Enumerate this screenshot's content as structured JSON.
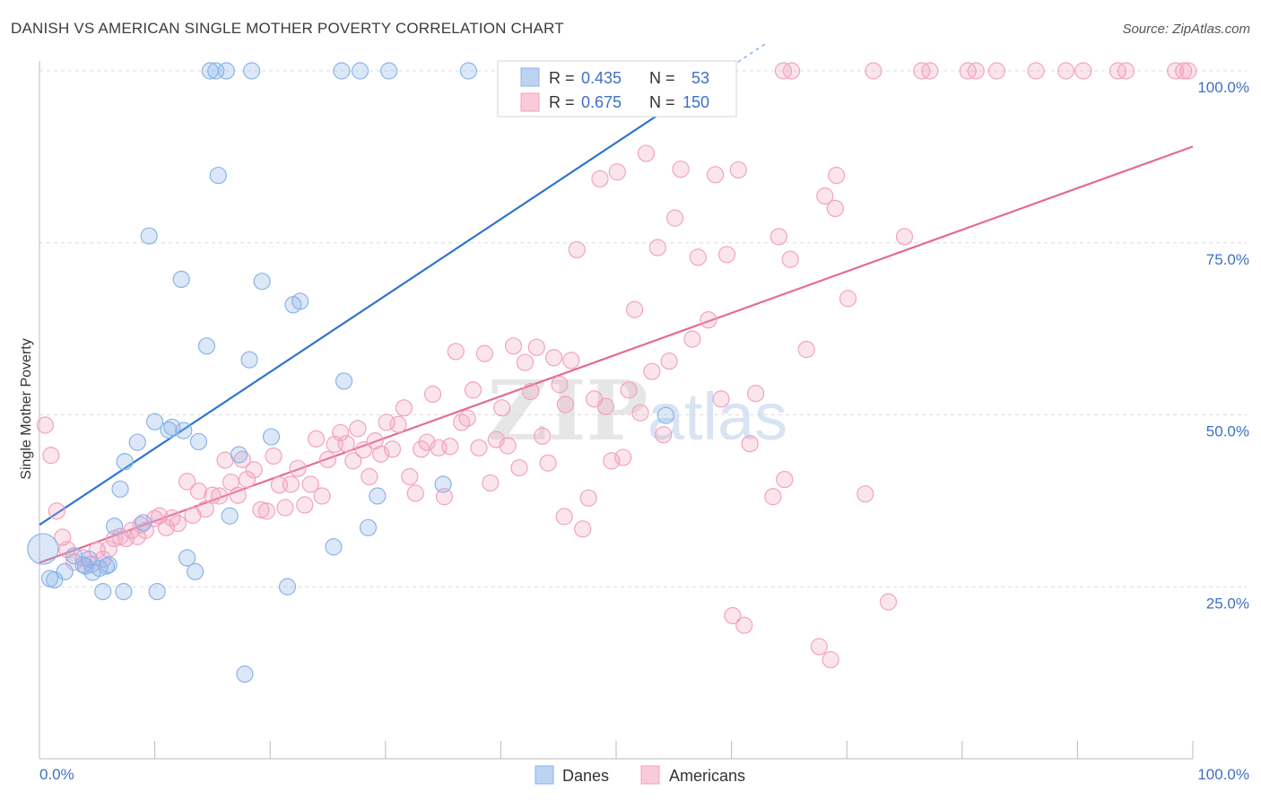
{
  "title": "DANISH VS AMERICAN SINGLE MOTHER POVERTY CORRELATION CHART",
  "source": "Source: ZipAtlas.com",
  "watermark": {
    "zip": "ZIP",
    "atlas": "atlas"
  },
  "colors": {
    "danes": "#8ab4e8",
    "danes_line": "#2f74d0",
    "americans": "#f2a3bf",
    "americans_line": "#e46b96",
    "axis_label": "#3f6fc4",
    "grid": "#dcdcdc"
  },
  "legend_stats": {
    "r_label": "R =",
    "n_label": "N =",
    "danes": {
      "r": "0.435",
      "n": "53"
    },
    "americans": {
      "r": "0.675",
      "n": "150"
    }
  },
  "legend_bottom": {
    "danes": "Danes",
    "americans": "Americans"
  },
  "chart_data": {
    "type": "scatter",
    "ylabel": "Single Mother Poverty",
    "xlim": [
      0,
      100
    ],
    "ylim": [
      0,
      100
    ],
    "x_tick_labels": [
      "0.0%",
      "100.0%"
    ],
    "y_tick_labels": [
      "25.0%",
      "50.0%",
      "75.0%",
      "100.0%"
    ],
    "y_ticks": [
      25,
      50,
      75,
      100
    ],
    "grid": true,
    "series": [
      {
        "name": "Danes",
        "trendline": {
          "x": [
            0,
            63
          ],
          "y": [
            34,
            104
          ]
        },
        "points": [
          [
            0.3,
            30.5
          ],
          [
            0.9,
            26.2
          ],
          [
            1.3,
            26.0
          ],
          [
            2.2,
            27.2
          ],
          [
            3.0,
            29.5
          ],
          [
            3.8,
            28.2
          ],
          [
            4.3,
            29.0
          ],
          [
            4.0,
            28.0
          ],
          [
            4.6,
            27.1
          ],
          [
            5.2,
            27.7
          ],
          [
            5.8,
            28.0
          ],
          [
            6.0,
            28.2
          ],
          [
            5.5,
            24.3
          ],
          [
            7.3,
            24.3
          ],
          [
            10.2,
            24.3
          ],
          [
            6.5,
            33.8
          ],
          [
            7.0,
            39.2
          ],
          [
            7.4,
            43.2
          ],
          [
            8.5,
            46.0
          ],
          [
            9.0,
            34.3
          ],
          [
            9.5,
            76.0
          ],
          [
            10.0,
            49.0
          ],
          [
            11.2,
            47.8
          ],
          [
            11.5,
            48.2
          ],
          [
            12.3,
            69.7
          ],
          [
            12.5,
            47.7
          ],
          [
            12.8,
            29.2
          ],
          [
            13.5,
            27.2
          ],
          [
            13.8,
            46.1
          ],
          [
            14.5,
            60.0
          ],
          [
            15.5,
            84.8
          ],
          [
            16.5,
            35.3
          ],
          [
            17.3,
            44.2
          ],
          [
            17.8,
            12.3
          ],
          [
            18.2,
            58.0
          ],
          [
            19.3,
            69.4
          ],
          [
            20.1,
            46.8
          ],
          [
            21.5,
            25.0
          ],
          [
            22.0,
            66.0
          ],
          [
            22.6,
            66.5
          ],
          [
            25.5,
            30.8
          ],
          [
            26.4,
            54.9
          ],
          [
            28.5,
            33.6
          ],
          [
            29.3,
            38.2
          ],
          [
            35.0,
            39.9
          ],
          [
            54.3,
            49.9
          ],
          [
            14.8,
            100
          ],
          [
            15.3,
            100
          ],
          [
            16.2,
            100
          ],
          [
            18.4,
            100
          ],
          [
            26.2,
            100
          ],
          [
            27.8,
            100
          ],
          [
            30.3,
            100
          ],
          [
            37.2,
            100
          ]
        ]
      },
      {
        "name": "Americans",
        "trendline": {
          "x": [
            0,
            100
          ],
          "y": [
            28.5,
            89
          ]
        },
        "points": [
          [
            0.5,
            48.5
          ],
          [
            1.0,
            44.1
          ],
          [
            1.5,
            36.0
          ],
          [
            2.0,
            32.2
          ],
          [
            2.4,
            30.4
          ],
          [
            3.0,
            28.6
          ],
          [
            3.8,
            29.2
          ],
          [
            4.5,
            28.3
          ],
          [
            5.0,
            30.3
          ],
          [
            5.5,
            29.0
          ],
          [
            6.0,
            30.5
          ],
          [
            6.5,
            32.0
          ],
          [
            7.0,
            32.3
          ],
          [
            7.5,
            32.0
          ],
          [
            8.0,
            33.2
          ],
          [
            8.5,
            32.3
          ],
          [
            8.8,
            34.0
          ],
          [
            9.2,
            33.2
          ],
          [
            10.0,
            34.9
          ],
          [
            10.4,
            35.3
          ],
          [
            11.0,
            33.6
          ],
          [
            11.5,
            35.0
          ],
          [
            12.0,
            34.2
          ],
          [
            12.8,
            40.3
          ],
          [
            13.3,
            35.4
          ],
          [
            13.8,
            38.9
          ],
          [
            14.4,
            36.3
          ],
          [
            15.0,
            38.3
          ],
          [
            15.6,
            38.2
          ],
          [
            16.1,
            43.4
          ],
          [
            16.6,
            40.2
          ],
          [
            17.2,
            38.3
          ],
          [
            17.6,
            43.5
          ],
          [
            18.0,
            40.6
          ],
          [
            18.6,
            42.0
          ],
          [
            19.2,
            36.2
          ],
          [
            19.7,
            36.0
          ],
          [
            20.3,
            44.0
          ],
          [
            20.8,
            39.8
          ],
          [
            21.3,
            36.5
          ],
          [
            21.8,
            39.9
          ],
          [
            22.4,
            42.2
          ],
          [
            23.0,
            36.9
          ],
          [
            23.5,
            39.9
          ],
          [
            24.0,
            46.5
          ],
          [
            24.5,
            38.2
          ],
          [
            25.0,
            43.5
          ],
          [
            25.6,
            45.7
          ],
          [
            26.1,
            47.4
          ],
          [
            26.6,
            45.8
          ],
          [
            27.2,
            43.3
          ],
          [
            27.6,
            48.0
          ],
          [
            28.1,
            44.9
          ],
          [
            28.6,
            41.0
          ],
          [
            29.1,
            46.2
          ],
          [
            29.6,
            44.3
          ],
          [
            30.1,
            48.9
          ],
          [
            30.6,
            45.0
          ],
          [
            31.1,
            48.6
          ],
          [
            31.6,
            51.0
          ],
          [
            32.1,
            41.0
          ],
          [
            32.6,
            38.6
          ],
          [
            33.1,
            45.0
          ],
          [
            33.6,
            46.0
          ],
          [
            34.1,
            53.0
          ],
          [
            34.6,
            45.2
          ],
          [
            35.1,
            38.1
          ],
          [
            35.6,
            45.4
          ],
          [
            36.1,
            59.2
          ],
          [
            36.6,
            48.9
          ],
          [
            37.1,
            49.5
          ],
          [
            37.6,
            53.6
          ],
          [
            38.1,
            45.2
          ],
          [
            38.6,
            58.9
          ],
          [
            39.1,
            40.1
          ],
          [
            39.6,
            46.4
          ],
          [
            40.1,
            51.0
          ],
          [
            40.6,
            45.5
          ],
          [
            41.1,
            60.0
          ],
          [
            41.6,
            42.3
          ],
          [
            42.1,
            57.6
          ],
          [
            42.6,
            53.4
          ],
          [
            43.1,
            59.8
          ],
          [
            43.6,
            46.9
          ],
          [
            44.1,
            43.0
          ],
          [
            44.6,
            58.3
          ],
          [
            45.1,
            54.4
          ],
          [
            45.6,
            51.5
          ],
          [
            46.1,
            57.9
          ],
          [
            46.6,
            74.0
          ],
          [
            47.1,
            33.4
          ],
          [
            47.6,
            37.9
          ],
          [
            48.1,
            52.3
          ],
          [
            48.6,
            84.3
          ],
          [
            49.1,
            51.2
          ],
          [
            49.6,
            43.3
          ],
          [
            50.1,
            85.3
          ],
          [
            50.6,
            43.8
          ],
          [
            51.1,
            53.6
          ],
          [
            51.6,
            65.3
          ],
          [
            52.1,
            50.3
          ],
          [
            52.6,
            88.0
          ],
          [
            53.1,
            56.3
          ],
          [
            53.6,
            74.3
          ],
          [
            54.1,
            47.1
          ],
          [
            54.6,
            57.8
          ],
          [
            55.1,
            78.6
          ],
          [
            55.6,
            85.7
          ],
          [
            56.6,
            61.0
          ],
          [
            57.1,
            72.9
          ],
          [
            58.0,
            63.8
          ],
          [
            58.6,
            84.9
          ],
          [
            59.1,
            52.3
          ],
          [
            59.6,
            73.3
          ],
          [
            60.1,
            20.8
          ],
          [
            60.6,
            85.6
          ],
          [
            61.1,
            19.4
          ],
          [
            61.6,
            45.8
          ],
          [
            62.1,
            53.1
          ],
          [
            63.6,
            38.1
          ],
          [
            64.1,
            75.9
          ],
          [
            64.6,
            40.6
          ],
          [
            65.1,
            72.6
          ],
          [
            67.6,
            16.3
          ],
          [
            68.1,
            81.8
          ],
          [
            68.6,
            14.4
          ],
          [
            69.1,
            84.8
          ],
          [
            70.1,
            66.9
          ],
          [
            71.6,
            38.5
          ],
          [
            73.6,
            22.8
          ],
          [
            75.0,
            75.9
          ],
          [
            54.0,
            100
          ],
          [
            54.5,
            100
          ],
          [
            64.5,
            100
          ],
          [
            65.2,
            100
          ],
          [
            72.3,
            100
          ],
          [
            76.5,
            100
          ],
          [
            77.2,
            100
          ],
          [
            80.5,
            100
          ],
          [
            81.2,
            100
          ],
          [
            83.0,
            100
          ],
          [
            86.4,
            100
          ],
          [
            89.0,
            100
          ],
          [
            90.5,
            100
          ],
          [
            93.5,
            100
          ],
          [
            94.2,
            100
          ],
          [
            98.5,
            100
          ],
          [
            99.6,
            100
          ],
          [
            99.2,
            100
          ],
          [
            69.0,
            80.0
          ],
          [
            66.5,
            59.5
          ],
          [
            45.5,
            35.2
          ]
        ]
      }
    ]
  }
}
